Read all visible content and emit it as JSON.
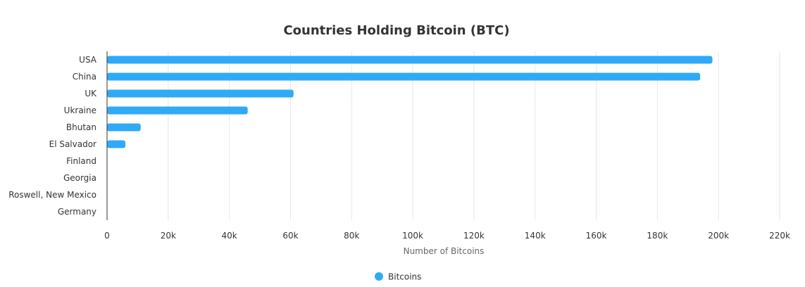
{
  "chart_data": {
    "type": "bar",
    "orientation": "horizontal",
    "title": "Countries Holding Bitcoin (BTC)",
    "xlabel": "Number of Bitcoins",
    "ylabel": "",
    "categories": [
      "USA",
      "China",
      "UK",
      "Ukraine",
      "Bhutan",
      "El Salvador",
      "Finland",
      "Georgia",
      "Roswell, New Mexico",
      "Germany"
    ],
    "series": [
      {
        "name": "Bitcoins",
        "values": [
          198000,
          194000,
          61000,
          46000,
          11000,
          6000,
          0,
          0,
          0,
          0
        ],
        "color": "#2eaaf7"
      }
    ],
    "xlim": [
      0,
      220000
    ],
    "xticks": [
      "0",
      "20k",
      "40k",
      "60k",
      "80k",
      "100k",
      "120k",
      "140k",
      "160k",
      "180k",
      "200k",
      "220k"
    ],
    "grid": "vertical",
    "legend": "bottom-center"
  }
}
